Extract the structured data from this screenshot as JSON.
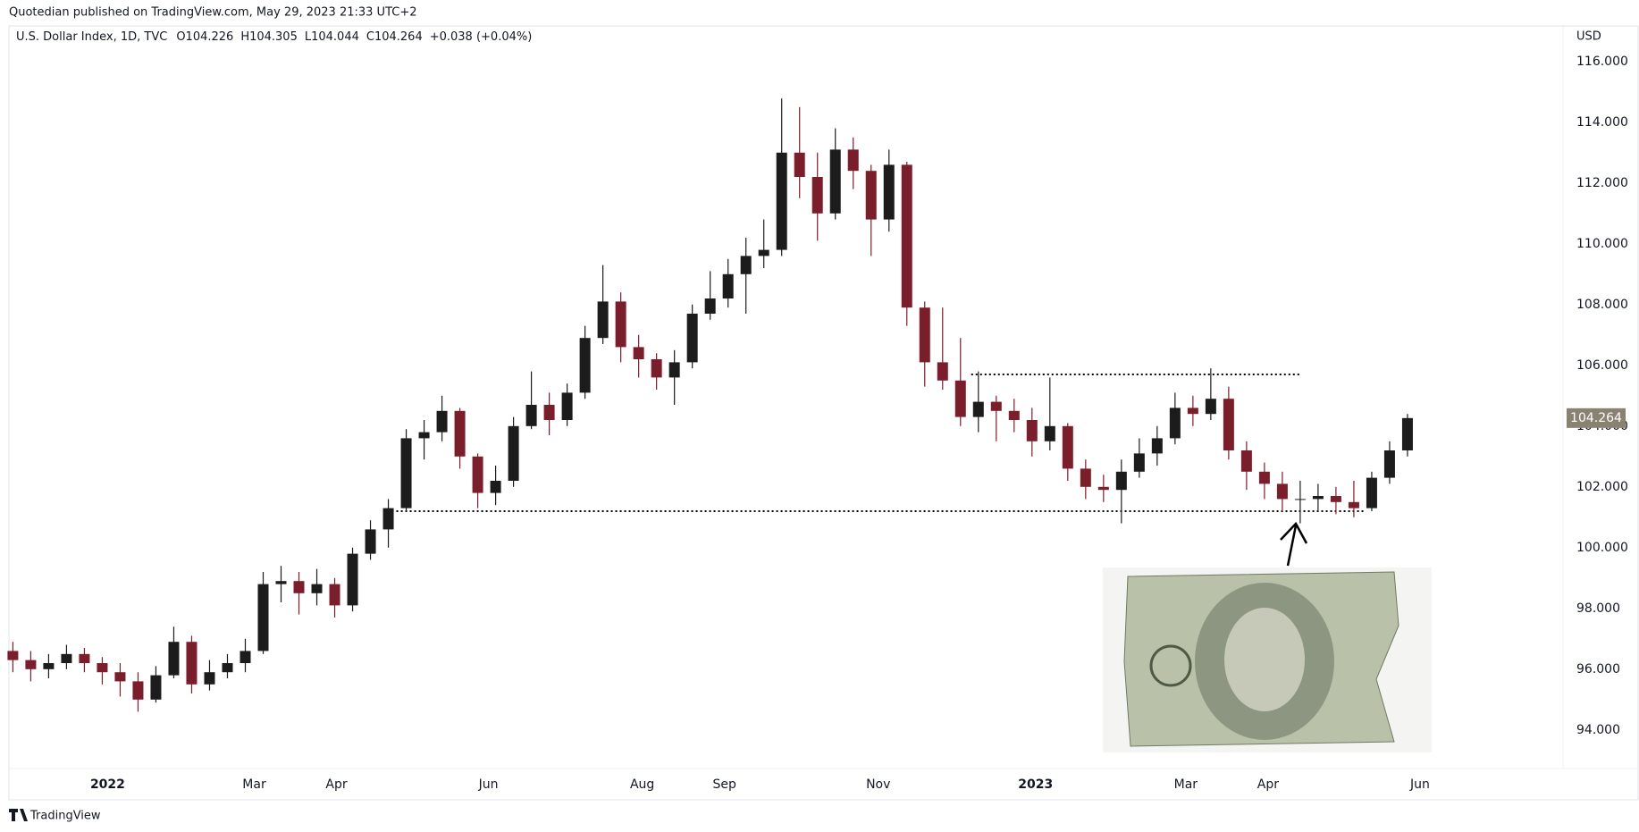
{
  "chart_data": {
    "type": "candlestick",
    "attribution": "Quotedian published on TradingView.com, May 29, 2023 21:33 UTC+2",
    "title": "U.S. Dollar Index, 1D, TVC",
    "ohlc_text": [
      "O104.226",
      "H104.305",
      "L104.044",
      "C104.264",
      "+0.038 (+0.04%)"
    ],
    "currency": "USD",
    "footer": "TradingView",
    "up_color": "#1c1c1c",
    "down_color": "#7b1e2b",
    "x": [
      0,
      1,
      2,
      3,
      4,
      5,
      6,
      7,
      8,
      9,
      10,
      11,
      12,
      13,
      14,
      15,
      16,
      17,
      18,
      19,
      20,
      21,
      22,
      23,
      24,
      25,
      26,
      27,
      28,
      29,
      30,
      31,
      32,
      33,
      34,
      35,
      36,
      37,
      38,
      39,
      40,
      41,
      42,
      43,
      44,
      45,
      46,
      47,
      48,
      49,
      50,
      51,
      52,
      53,
      54,
      55,
      56,
      57,
      58,
      59,
      60,
      61,
      62,
      63,
      64,
      65,
      66,
      67,
      68,
      69,
      70,
      71,
      72,
      73,
      74,
      75,
      76,
      77,
      78
    ],
    "open": [
      96.6,
      96.3,
      96.0,
      96.2,
      96.5,
      96.2,
      95.9,
      95.6,
      95.0,
      95.8,
      96.9,
      95.5,
      95.9,
      96.2,
      96.6,
      98.8,
      98.9,
      98.5,
      98.8,
      98.1,
      99.8,
      100.6,
      101.3,
      103.6,
      103.8,
      104.5,
      103.0,
      101.8,
      102.2,
      104.0,
      104.7,
      104.2,
      105.1,
      106.9,
      108.1,
      106.6,
      106.2,
      105.6,
      106.1,
      107.7,
      108.2,
      109.0,
      109.6,
      109.8,
      113.0,
      112.2,
      111.0,
      113.1,
      112.4,
      110.8,
      112.6,
      107.9,
      106.1,
      105.5,
      104.3,
      104.8,
      104.5,
      104.2,
      103.5,
      104.0,
      102.6,
      102.0,
      101.9,
      102.5,
      103.1,
      103.6,
      104.6,
      104.4,
      104.9,
      103.2,
      102.5,
      102.1,
      101.6,
      101.6,
      101.7,
      101.5,
      101.3,
      102.3,
      103.2
    ],
    "high": [
      96.9,
      96.6,
      96.5,
      96.8,
      96.7,
      96.4,
      96.2,
      95.9,
      96.1,
      97.4,
      97.1,
      96.3,
      96.5,
      97.0,
      99.2,
      99.4,
      99.2,
      99.3,
      99.0,
      100.0,
      100.9,
      101.6,
      103.9,
      104.2,
      105.0,
      104.6,
      103.1,
      102.7,
      104.3,
      105.8,
      105.1,
      105.4,
      107.3,
      109.3,
      108.4,
      107.0,
      106.4,
      106.5,
      108.0,
      109.1,
      109.5,
      110.2,
      110.8,
      114.78,
      114.5,
      113.0,
      113.8,
      113.5,
      112.6,
      113.1,
      112.7,
      108.1,
      107.9,
      106.9,
      105.8,
      105.0,
      104.9,
      104.6,
      105.6,
      104.1,
      102.9,
      102.4,
      102.9,
      103.6,
      104.0,
      105.1,
      105.0,
      105.9,
      105.3,
      103.5,
      102.8,
      102.5,
      102.2,
      102.1,
      102.0,
      102.2,
      102.5,
      103.5,
      104.4
    ],
    "low": [
      95.9,
      95.6,
      95.7,
      96.0,
      95.9,
      95.5,
      95.1,
      94.6,
      94.9,
      95.7,
      95.2,
      95.3,
      95.7,
      95.9,
      96.5,
      98.2,
      97.8,
      98.1,
      97.7,
      97.9,
      99.6,
      100.0,
      101.2,
      102.9,
      103.5,
      102.6,
      101.3,
      101.4,
      102.0,
      103.9,
      103.7,
      104.0,
      104.9,
      106.7,
      106.1,
      105.6,
      105.2,
      104.7,
      105.9,
      107.5,
      107.9,
      107.7,
      109.2,
      109.6,
      111.5,
      110.1,
      110.8,
      111.8,
      109.6,
      110.4,
      107.3,
      105.3,
      105.2,
      104.0,
      103.8,
      103.5,
      103.8,
      103.0,
      103.2,
      102.2,
      101.6,
      101.5,
      100.8,
      102.3,
      102.7,
      103.4,
      104.0,
      104.2,
      102.9,
      101.9,
      101.6,
      101.2,
      100.8,
      101.2,
      101.1,
      101.0,
      101.2,
      102.1,
      103.0
    ],
    "close": [
      96.3,
      96.0,
      96.2,
      96.5,
      96.2,
      95.9,
      95.6,
      95.0,
      95.8,
      96.9,
      95.5,
      95.9,
      96.2,
      96.6,
      98.8,
      98.9,
      98.5,
      98.8,
      98.1,
      99.8,
      100.6,
      101.3,
      103.6,
      103.8,
      104.5,
      103.0,
      101.8,
      102.2,
      104.0,
      104.7,
      104.2,
      105.1,
      106.9,
      108.1,
      106.6,
      106.2,
      105.6,
      106.1,
      107.7,
      108.2,
      109.0,
      109.6,
      109.8,
      113.0,
      112.2,
      111.0,
      113.1,
      112.4,
      110.8,
      112.6,
      107.9,
      106.1,
      105.5,
      104.3,
      104.8,
      104.5,
      104.2,
      103.5,
      104.0,
      102.6,
      102.0,
      101.9,
      102.5,
      103.1,
      103.6,
      104.6,
      104.4,
      104.9,
      103.2,
      102.5,
      102.1,
      101.6,
      101.6,
      101.7,
      101.5,
      101.3,
      102.3,
      103.2,
      104.264
    ],
    "levels": [
      {
        "value": 101.2,
        "from": 21.2,
        "to": 75.6
      },
      {
        "value": 105.7,
        "from": 53.6,
        "to": 72.0
      }
    ],
    "xlim": [
      -0.12,
      86.7
    ],
    "xticks": [
      {
        "value": 5.3,
        "label": "2022"
      },
      {
        "value": 13.5,
        "label": "Mar"
      },
      {
        "value": 18.1,
        "label": "Apr"
      },
      {
        "value": 26.6,
        "label": "Jun"
      },
      {
        "value": 35.2,
        "label": "Aug"
      },
      {
        "value": 39.8,
        "label": "Sep"
      },
      {
        "value": 48.4,
        "label": "Nov"
      },
      {
        "value": 57.2,
        "label": "2023"
      },
      {
        "value": 65.6,
        "label": "Mar"
      },
      {
        "value": 70.2,
        "label": "Apr"
      },
      {
        "value": 78.7,
        "label": "Jun"
      }
    ],
    "ylim": [
      92.73,
      117.17
    ],
    "yticks": [
      {
        "value": 94,
        "label": "94.000"
      },
      {
        "value": 96,
        "label": "96.000"
      },
      {
        "value": 98,
        "label": "98.000"
      },
      {
        "value": 100,
        "label": "100.000"
      },
      {
        "value": 102,
        "label": "102.000"
      },
      {
        "value": 104,
        "label": "104.000"
      },
      {
        "value": 106,
        "label": "106.000"
      },
      {
        "value": 108,
        "label": "108.000"
      },
      {
        "value": 110,
        "label": "110.000"
      },
      {
        "value": 112,
        "label": "112.000"
      },
      {
        "value": 114,
        "label": "114.000"
      },
      {
        "value": 116,
        "label": "116.000"
      }
    ]
  }
}
